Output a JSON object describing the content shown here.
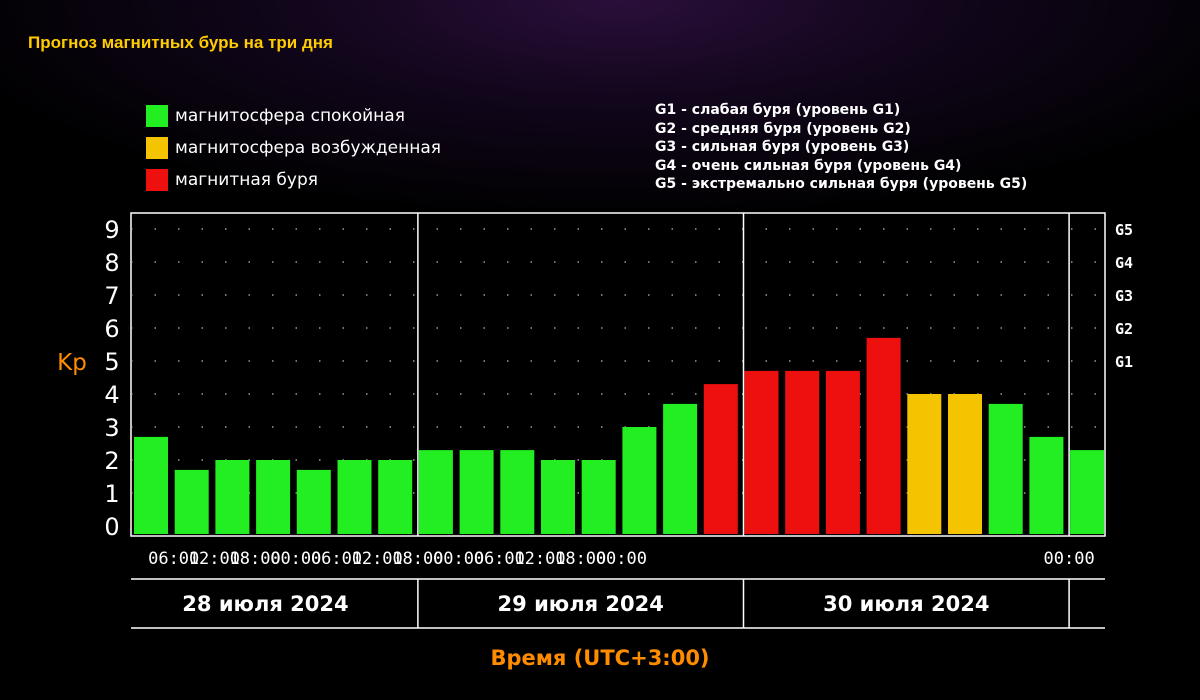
{
  "title": "Прогноз магнитных бурь на три дня",
  "legend": {
    "items": [
      {
        "label": "магнитосфера спокойная",
        "color": "#22ee22"
      },
      {
        "label": "магнитосфера возбужденная",
        "color": "#f5c400"
      },
      {
        "label": "магнитная буря",
        "color": "#ee0f0f"
      }
    ],
    "storm_levels": [
      "G1 - слабая буря (уровень G1)",
      "G2 - средняя буря (уровень G2)",
      "G3 - сильная буря (уровень G3)",
      "G4 - очень сильная буря (уровень G4)",
      "G5 - экстремально сильная буря (уровень G5)"
    ]
  },
  "colors": {
    "axis_label": "#ff8c00",
    "text": "#ffffff",
    "grid_dots": "#bbbbbb",
    "axis": "#ffffff"
  },
  "chart_data": {
    "type": "bar",
    "ylabel": "Kp",
    "xlabel": "Время (UTC+3:00)",
    "ylim": [
      0,
      9
    ],
    "yticks": [
      "0",
      "1",
      "2",
      "3",
      "4",
      "5",
      "6",
      "7",
      "8",
      "9"
    ],
    "right_ticks": [
      {
        "label": "G1",
        "value": 5
      },
      {
        "label": "G2",
        "value": 6
      },
      {
        "label": "G3",
        "value": 7
      },
      {
        "label": "G4",
        "value": 8
      },
      {
        "label": "G5",
        "value": 9
      }
    ],
    "time_ticks": [
      "06:00",
      "12:00",
      "18:00",
      "00:00",
      "06:00",
      "12:00",
      "18:00",
      "00:00",
      "06:00",
      "12:00",
      "18:00",
      "00:00",
      "00:00"
    ],
    "days": [
      "28 июля 2024",
      "29 июля 2024",
      "30 июля 2024"
    ],
    "values": [
      2.7,
      1.7,
      2.0,
      2.0,
      1.7,
      2.0,
      2.0,
      2.3,
      2.3,
      2.3,
      2.0,
      2.0,
      3.0,
      3.7,
      4.3,
      4.7,
      4.7,
      4.7,
      5.7,
      4.0,
      4.0,
      3.7,
      2.7,
      2.3
    ],
    "statuses": [
      "quiet",
      "quiet",
      "quiet",
      "quiet",
      "quiet",
      "quiet",
      "quiet",
      "quiet",
      "quiet",
      "quiet",
      "quiet",
      "quiet",
      "quiet",
      "quiet",
      "storm",
      "storm",
      "storm",
      "storm",
      "storm",
      "active",
      "active",
      "quiet",
      "quiet",
      "quiet"
    ],
    "status_colors": {
      "quiet": "#22ee22",
      "active": "#f5c400",
      "storm": "#ee0f0f"
    },
    "grid": "dotted"
  }
}
